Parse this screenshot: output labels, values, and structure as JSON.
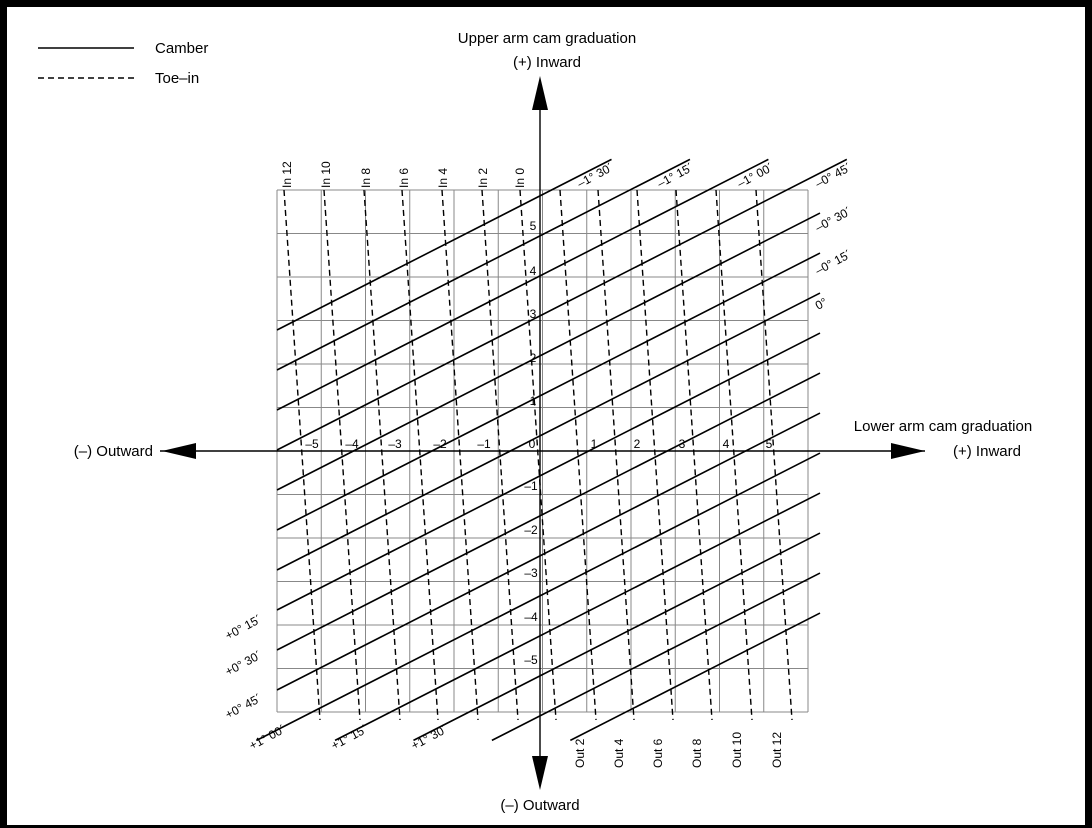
{
  "legend": {
    "solid": "Camber",
    "dashed": "Toe–in"
  },
  "axes": {
    "upper_title": "Upper arm cam graduation",
    "upper_positive": "(+) Inward",
    "upper_negative": "(–) Outward",
    "lower_title": "Lower arm cam graduation",
    "lower_positive": "(+) Inward",
    "lower_negative": "(–) Outward",
    "x_ticks": [
      "–5",
      "–4",
      "–3",
      "–2",
      "–1",
      "0",
      "1",
      "2",
      "3",
      "4",
      "5"
    ],
    "y_ticks_pos": [
      "1",
      "2",
      "3",
      "4",
      "5"
    ],
    "y_ticks_neg": [
      "–1",
      "–2",
      "–3",
      "–4",
      "–5"
    ]
  },
  "toe_in": {
    "top_labels": [
      "In 12",
      "In 10",
      "In 8",
      "In 6",
      "In 4",
      "In 2",
      "In 0"
    ],
    "bottom_labels": [
      "Out 2",
      "Out 4",
      "Out 6",
      "Out 8",
      "Out 10",
      "Out 12"
    ]
  },
  "camber": {
    "right_labels": [
      "–1° 30´",
      "–1° 15´",
      "–1° 00´",
      "–0° 45´",
      "–0° 30´",
      "–0° 15´",
      "0°"
    ],
    "left_labels": [
      "+0° 15´",
      "+0° 30´",
      "+0° 45´",
      "+1° 00´",
      "+1° 15´",
      "+1° 30´"
    ]
  }
}
